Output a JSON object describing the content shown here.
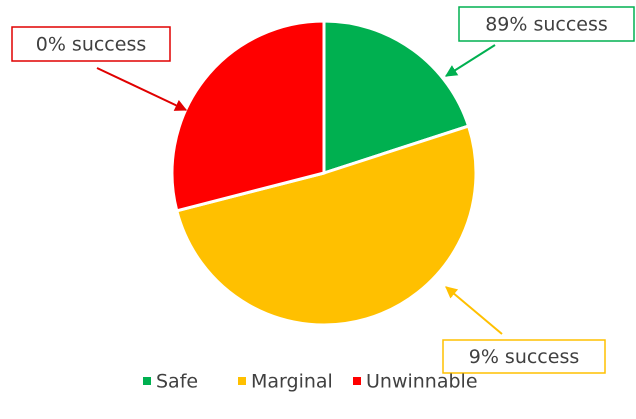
{
  "chart_data": {
    "type": "pie",
    "categories": [
      "Safe",
      "Marginal",
      "Unwinnable"
    ],
    "values": [
      20,
      51,
      29
    ],
    "colors": [
      "#00b050",
      "#ffc000",
      "#ff0000"
    ],
    "legend": "bottom",
    "annotations": [
      {
        "text": "89% success",
        "color": "#00b050"
      },
      {
        "text": "9% success",
        "color": "#ffc000"
      },
      {
        "text": "0% success",
        "color": "#e00000"
      }
    ]
  }
}
